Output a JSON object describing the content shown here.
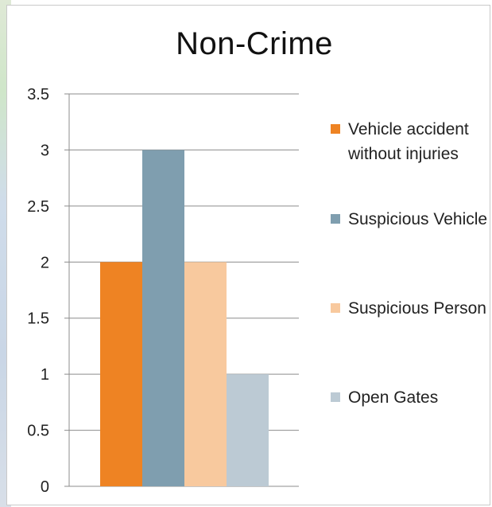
{
  "chart_data": {
    "type": "bar",
    "title": "Non-Crime",
    "categories": [
      ""
    ],
    "series": [
      {
        "name": "Vehicle accident without injuries",
        "values": [
          2
        ],
        "color": "#ee8323"
      },
      {
        "name": "Suspicious Vehicle",
        "values": [
          3
        ],
        "color": "#7f9eaf"
      },
      {
        "name": "Suspicious Person",
        "values": [
          2
        ],
        "color": "#f8c99e"
      },
      {
        "name": "Open Gates",
        "values": [
          1
        ],
        "color": "#bccad4"
      }
    ],
    "yticks": [
      "0",
      "0.5",
      "1",
      "1.5",
      "2",
      "2.5",
      "3",
      "3.5"
    ],
    "ylim": [
      0,
      3.5
    ],
    "xlabel": "",
    "ylabel": "",
    "grid": true,
    "legend_position": "right"
  }
}
